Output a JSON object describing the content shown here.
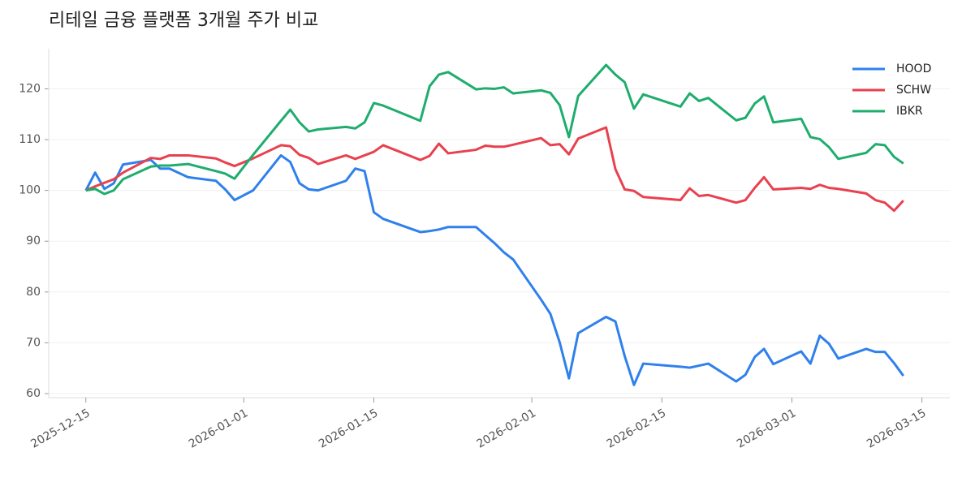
{
  "chart_data": {
    "type": "line",
    "title": "리테일 금융 플랫폼 3개월 주가 비교",
    "x": [
      "2025-12-15",
      "2025-12-16",
      "2025-12-17",
      "2025-12-18",
      "2025-12-19",
      "2025-12-22",
      "2025-12-23",
      "2025-12-24",
      "2025-12-26",
      "2025-12-29",
      "2025-12-30",
      "2025-12-31",
      "2026-01-02",
      "2026-01-05",
      "2026-01-06",
      "2026-01-07",
      "2026-01-08",
      "2026-01-09",
      "2026-01-12",
      "2026-01-13",
      "2026-01-14",
      "2026-01-15",
      "2026-01-16",
      "2026-01-20",
      "2026-01-21",
      "2026-01-22",
      "2026-01-23",
      "2026-01-26",
      "2026-01-27",
      "2026-01-28",
      "2026-01-29",
      "2026-01-30",
      "2026-02-02",
      "2026-02-03",
      "2026-02-04",
      "2026-02-05",
      "2026-02-06",
      "2026-02-09",
      "2026-02-10",
      "2026-02-11",
      "2026-02-12",
      "2026-02-13",
      "2026-02-17",
      "2026-02-18",
      "2026-02-19",
      "2026-02-20",
      "2026-02-23",
      "2026-02-24",
      "2026-02-25",
      "2026-02-26",
      "2026-02-27",
      "2026-03-02",
      "2026-03-03",
      "2026-03-04",
      "2026-03-05",
      "2026-03-06",
      "2026-03-09",
      "2026-03-10",
      "2026-03-11",
      "2026-03-12",
      "2026-03-13"
    ],
    "series": [
      {
        "name": "HOOD",
        "color": "#2f80ed",
        "values": [
          100,
          103.5,
          100.3,
          101.4,
          105.1,
          106,
          104.3,
          104.3,
          102.6,
          101.9,
          100.2,
          98.1,
          100,
          106.9,
          105.6,
          101.4,
          100.2,
          100,
          101.9,
          104.3,
          103.8,
          95.7,
          94.4,
          91.8,
          92.0,
          92.3,
          92.8,
          92.8,
          91.2,
          89.6,
          87.8,
          86.4,
          78.5,
          75.7,
          70.1,
          63.0,
          71.9,
          75.1,
          74.2,
          67.4,
          61.7,
          65.9,
          65.3,
          65.1,
          65.5,
          65.9,
          62.4,
          63.7,
          67.2,
          68.8,
          65.8,
          68.3,
          65.9,
          71.4,
          69.8,
          66.9,
          68.8,
          68.2,
          68.2,
          66,
          63.5
        ]
      },
      {
        "name": "SCHW",
        "color": "#e8414f",
        "values": [
          100,
          100.8,
          101.5,
          102.2,
          103.5,
          106.4,
          106.2,
          106.9,
          106.9,
          106.3,
          105.5,
          104.8,
          106.3,
          108.9,
          108.7,
          107,
          106.4,
          105.2,
          106.9,
          106.2,
          106.9,
          107.6,
          108.9,
          106,
          106.8,
          109.2,
          107.3,
          108,
          108.8,
          108.6,
          108.6,
          109,
          110.3,
          108.9,
          109.1,
          107.1,
          110.2,
          112.4,
          104.2,
          100.2,
          99.9,
          98.7,
          98.1,
          100.4,
          98.9,
          99.1,
          97.6,
          98.1,
          100.5,
          102.6,
          100.2,
          100.5,
          100.3,
          101.1,
          100.5,
          100.3,
          99.4,
          98.1,
          97.6,
          96,
          98
        ]
      },
      {
        "name": "IBKR",
        "color": "#1fad6e",
        "values": [
          100,
          100.3,
          99.3,
          100,
          102.2,
          104.7,
          104.9,
          104.9,
          105.2,
          103.8,
          103.3,
          102.3,
          107,
          113.7,
          115.9,
          113.4,
          111.6,
          112,
          112.5,
          112.2,
          113.4,
          117.2,
          116.7,
          113.7,
          120.5,
          122.8,
          123.3,
          119.9,
          120.1,
          120,
          120.3,
          119.1,
          119.7,
          119.2,
          116.8,
          110.5,
          118.6,
          124.7,
          122.8,
          121.3,
          116.1,
          118.9,
          116.5,
          119.1,
          117.6,
          118.2,
          113.8,
          114.3,
          117.1,
          118.5,
          113.4,
          114.1,
          110.5,
          110.1,
          108.5,
          106.2,
          107.4,
          109.1,
          108.9,
          106.6,
          105.3
        ]
      }
    ],
    "xlim": [
      "2025-12-11",
      "2026-03-18"
    ],
    "xticks": [
      "2025-12-15",
      "2026-01-01",
      "2026-01-15",
      "2026-02-01",
      "2026-02-15",
      "2026-03-01",
      "2026-03-15"
    ],
    "ylim": [
      59.2,
      127.9
    ],
    "yticks": [
      60,
      70,
      80,
      90,
      100,
      110,
      120
    ],
    "grid": true,
    "legend": "upper right"
  }
}
